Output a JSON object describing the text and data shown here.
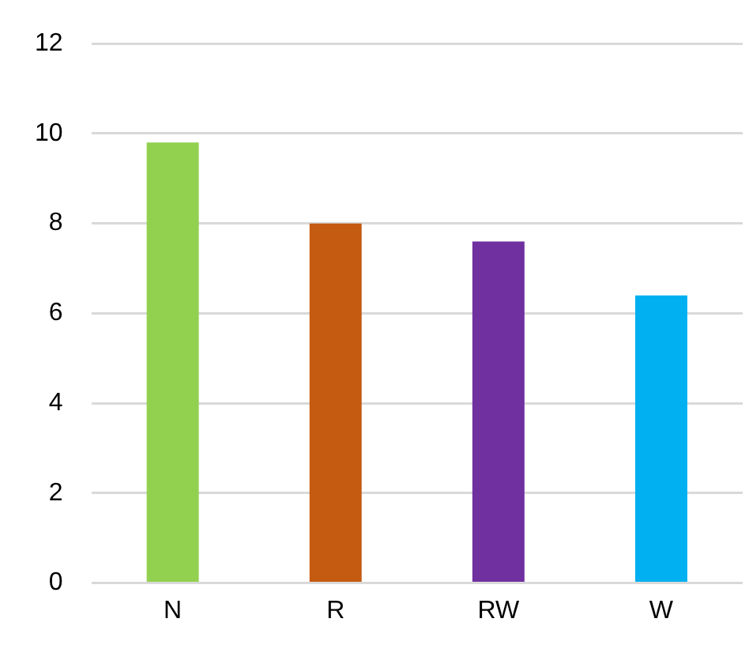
{
  "chart_data": {
    "type": "bar",
    "categories": [
      "N",
      "R",
      "RW",
      "W"
    ],
    "values": [
      9.8,
      8.0,
      7.6,
      6.4
    ],
    "colors": [
      "#92d050",
      "#c55a11",
      "#7030a0",
      "#00b0f0"
    ],
    "ylim": [
      0,
      12
    ],
    "yticks": [
      0,
      2,
      4,
      6,
      8,
      10,
      12
    ],
    "grid": "y",
    "legend": false
  }
}
